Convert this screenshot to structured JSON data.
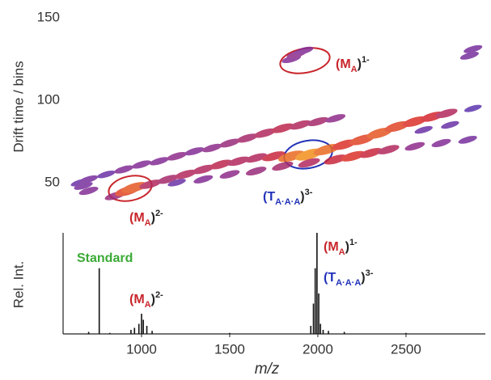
{
  "chart_data": [
    {
      "type": "heatmap",
      "ylabel": "Drift time / bins",
      "xlim": [
        555,
        2950
      ],
      "ylim": [
        21,
        150
      ],
      "yticks": [
        50,
        100,
        150
      ],
      "colors": [
        "#3a3ac8",
        "#8b2c8f",
        "#d8262a",
        "#f7a21b"
      ],
      "x": [
        650,
        700,
        800,
        900,
        1000,
        1100,
        1200,
        1300,
        1400,
        1500,
        1600,
        1700,
        1800,
        1900,
        2000,
        2100,
        850,
        920,
        960,
        1050,
        1150,
        1250,
        1350,
        1450,
        1550,
        1650,
        1750,
        1850,
        1950,
        2050,
        2150,
        2250,
        2350,
        2450,
        2550,
        2650,
        2730,
        1200,
        1350,
        1500,
        1650,
        1800,
        1950,
        2100,
        2200,
        2300,
        2400,
        2550,
        2700,
        2850,
        2600,
        2750,
        2880,
        1850,
        1880,
        1920,
        2860,
        2880,
        670,
        700
      ],
      "y": [
        50,
        52,
        55,
        58,
        61,
        63,
        66,
        69,
        71,
        74,
        77,
        80,
        83,
        85,
        87,
        89,
        42,
        45,
        47,
        49,
        52,
        55,
        58,
        61,
        63,
        65,
        66,
        66,
        67,
        70,
        73,
        76,
        80,
        84,
        87,
        90,
        92,
        50,
        52,
        55,
        57,
        60,
        62,
        64,
        66,
        68,
        70,
        72,
        74,
        76,
        82,
        85,
        95,
        125,
        128,
        130,
        127,
        131,
        48,
        45
      ],
      "z": [
        0.2,
        0.25,
        0.2,
        0.3,
        0.3,
        0.3,
        0.35,
        0.3,
        0.35,
        0.4,
        0.45,
        0.5,
        0.55,
        0.5,
        0.45,
        0.35,
        0.4,
        0.75,
        0.8,
        0.5,
        0.45,
        0.5,
        0.5,
        0.55,
        0.5,
        0.5,
        0.6,
        0.85,
        0.95,
        0.85,
        0.7,
        0.75,
        0.8,
        0.75,
        0.7,
        0.65,
        0.5,
        0.2,
        0.3,
        0.35,
        0.4,
        0.45,
        0.5,
        0.6,
        0.7,
        0.6,
        0.5,
        0.35,
        0.3,
        0.25,
        0.2,
        0.2,
        0.15,
        0.3,
        0.35,
        0.3,
        0.25,
        0.25,
        0.25,
        0.3
      ],
      "annotations": [
        {
          "parts": [
            "(M",
            "A",
            ")",
            "1-"
          ],
          "color": "#c8262c"
        },
        {
          "parts": [
            "(M",
            "A",
            ")",
            "2-"
          ],
          "color": "#c8262c"
        },
        {
          "parts": [
            "(T",
            "A·A·A",
            ")",
            "3-"
          ],
          "color": "#2233b8"
        }
      ]
    },
    {
      "type": "spectrum",
      "ylabel": "Rel. Int.",
      "xlabel": "m/z",
      "xlim": [
        555,
        2950
      ],
      "xticks": [
        1000,
        1500,
        2000,
        2500
      ],
      "ylim": [
        0,
        100
      ],
      "color": "#111111",
      "x": [
        700,
        760,
        820,
        940,
        960,
        985,
        1000,
        1010,
        1030,
        1060,
        1500,
        1960,
        1975,
        1985,
        1995,
        2005,
        2015,
        2030,
        2060,
        2150,
        2500
      ],
      "values": [
        2,
        65,
        1,
        4,
        6,
        10,
        20,
        14,
        8,
        3,
        1,
        8,
        30,
        65,
        100,
        40,
        10,
        4,
        3,
        2,
        1
      ],
      "annotations": [
        {
          "parts": [
            "Standard"
          ],
          "color": "#3aaa35"
        },
        {
          "parts": [
            "(M",
            "A",
            ")",
            "2-"
          ],
          "color": "#c8262c"
        },
        {
          "parts": [
            "(M",
            "A",
            ")",
            "1-"
          ],
          "color": "#c8262c"
        },
        {
          "parts": [
            "(T",
            "A·A·A",
            ")",
            "3-"
          ],
          "color": "#2233b8"
        }
      ]
    }
  ]
}
